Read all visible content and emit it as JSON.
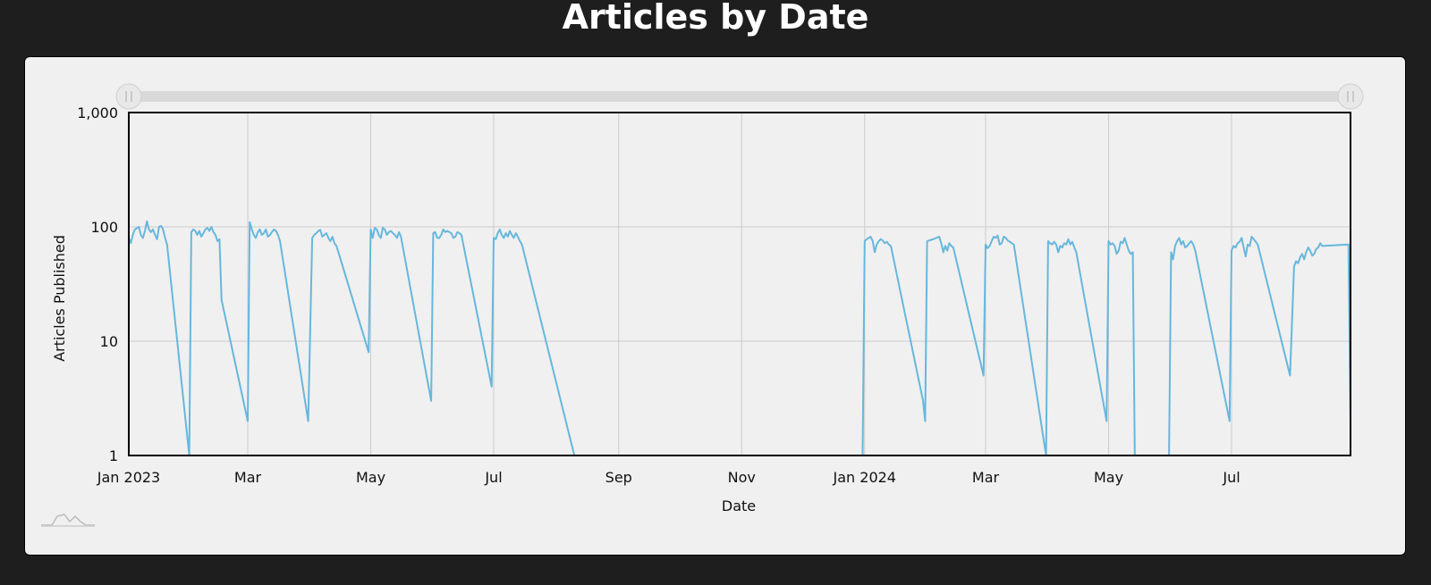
{
  "page_title": "Articles by Date",
  "colors": {
    "background": "#1e1e1e",
    "panel": "#f0f0f0",
    "line": "#67b7dc",
    "grid": "#cccccc",
    "scrollbar_track": "#d9d9d9",
    "scrollbar_grip": "#e6e6e6"
  },
  "icons": {
    "logo": "chart-logo-icon",
    "scroll_start": "scrollbar-start-grip-icon",
    "scroll_end": "scrollbar-end-grip-icon"
  },
  "chart_data": {
    "type": "line",
    "xlabel": "Date",
    "ylabel": "Articles Published",
    "y_scale": "log",
    "ylim": [
      1,
      1000
    ],
    "y_ticks": [
      1,
      10,
      100,
      1000
    ],
    "y_tick_labels": [
      "1",
      "10",
      "100",
      "1,000"
    ],
    "xlim": [
      "2023-01-01",
      "2024-08-29"
    ],
    "x_ticks": [
      "2023-01-01",
      "2023-03-01",
      "2023-05-01",
      "2023-07-01",
      "2023-09-01",
      "2023-11-01",
      "2024-01-01",
      "2024-03-01",
      "2024-05-01",
      "2024-07-01"
    ],
    "x_tick_labels": [
      "Jan 2023",
      "Mar",
      "May",
      "Jul",
      "Sep",
      "Nov",
      "Jan 2024",
      "Mar",
      "May",
      "Jul"
    ],
    "grid": true,
    "legend": "none",
    "has_scrollbar": true,
    "series": [
      {
        "x": [
          "2023-01-01",
          "2023-01-02",
          "2023-01-03",
          "2023-01-04",
          "2023-01-06",
          "2023-01-07",
          "2023-01-08",
          "2023-01-09",
          "2023-01-10",
          "2023-01-11",
          "2023-01-12",
          "2023-01-13",
          "2023-01-14",
          "2023-01-15",
          "2023-01-16",
          "2023-01-17",
          "2023-01-18",
          "2023-01-19",
          "2023-01-20",
          "2023-01-31",
          "2023-02-01",
          "2023-02-02",
          "2023-02-03",
          "2023-02-04",
          "2023-02-05",
          "2023-02-06",
          "2023-02-07",
          "2023-02-08",
          "2023-02-09",
          "2023-02-10",
          "2023-02-11",
          "2023-02-12",
          "2023-02-13",
          "2023-02-14",
          "2023-02-15",
          "2023-02-16",
          "2023-03-01",
          "2023-03-02",
          "2023-03-03",
          "2023-03-04",
          "2023-03-05",
          "2023-03-06",
          "2023-03-07",
          "2023-03-08",
          "2023-03-09",
          "2023-03-10",
          "2023-03-11",
          "2023-03-12",
          "2023-03-13",
          "2023-03-14",
          "2023-03-15",
          "2023-03-16",
          "2023-03-17",
          "2023-03-31",
          "2023-04-02",
          "2023-04-03",
          "2023-04-04",
          "2023-04-05",
          "2023-04-06",
          "2023-04-07",
          "2023-04-08",
          "2023-04-09",
          "2023-04-10",
          "2023-04-11",
          "2023-04-12",
          "2023-04-13",
          "2023-04-14",
          "2023-04-15",
          "2023-04-30",
          "2023-05-01",
          "2023-05-02",
          "2023-05-03",
          "2023-05-04",
          "2023-05-05",
          "2023-05-06",
          "2023-05-07",
          "2023-05-08",
          "2023-05-09",
          "2023-05-10",
          "2023-05-11",
          "2023-05-12",
          "2023-05-13",
          "2023-05-14",
          "2023-05-15",
          "2023-05-16",
          "2023-05-31",
          "2023-06-01",
          "2023-06-02",
          "2023-06-03",
          "2023-06-04",
          "2023-06-05",
          "2023-06-06",
          "2023-06-07",
          "2023-06-08",
          "2023-06-09",
          "2023-06-10",
          "2023-06-11",
          "2023-06-12",
          "2023-06-13",
          "2023-06-14",
          "2023-06-15",
          "2023-06-30",
          "2023-07-01",
          "2023-07-02",
          "2023-07-03",
          "2023-07-04",
          "2023-07-05",
          "2023-07-06",
          "2023-07-07",
          "2023-07-08",
          "2023-07-09",
          "2023-07-10",
          "2023-07-11",
          "2023-07-12",
          "2023-07-13",
          "2023-07-14",
          "2023-07-15",
          "2023-08-10",
          "2023-12-31",
          "2024-01-01",
          "2024-01-02",
          "2024-01-03",
          "2024-01-04",
          "2024-01-05",
          "2024-01-06",
          "2024-01-07",
          "2024-01-08",
          "2024-01-09",
          "2024-01-10",
          "2024-01-11",
          "2024-01-12",
          "2024-01-13",
          "2024-01-14",
          "2024-01-30",
          "2024-01-31",
          "2024-02-01",
          "2024-02-04",
          "2024-02-07",
          "2024-02-08",
          "2024-02-09",
          "2024-02-10",
          "2024-02-11",
          "2024-02-12",
          "2024-02-13",
          "2024-02-14",
          "2024-02-29",
          "2024-03-01",
          "2024-03-02",
          "2024-03-03",
          "2024-03-04",
          "2024-03-05",
          "2024-03-06",
          "2024-03-07",
          "2024-03-08",
          "2024-03-09",
          "2024-03-10",
          "2024-03-11",
          "2024-03-12",
          "2024-03-13",
          "2024-03-14",
          "2024-03-15",
          "2024-03-31",
          "2024-04-01",
          "2024-04-02",
          "2024-04-03",
          "2024-04-04",
          "2024-04-05",
          "2024-04-06",
          "2024-04-07",
          "2024-04-08",
          "2024-04-09",
          "2024-04-10",
          "2024-04-11",
          "2024-04-12",
          "2024-04-13",
          "2024-04-14",
          "2024-04-15",
          "2024-04-30",
          "2024-05-01",
          "2024-05-02",
          "2024-05-03",
          "2024-05-04",
          "2024-05-05",
          "2024-05-06",
          "2024-05-07",
          "2024-05-08",
          "2024-05-09",
          "2024-05-10",
          "2024-05-11",
          "2024-05-12",
          "2024-05-13",
          "2024-05-14",
          "2024-05-31",
          "2024-06-01",
          "2024-06-02",
          "2024-06-03",
          "2024-06-04",
          "2024-06-05",
          "2024-06-06",
          "2024-06-07",
          "2024-06-08",
          "2024-06-09",
          "2024-06-10",
          "2024-06-11",
          "2024-06-12",
          "2024-06-13",
          "2024-06-30",
          "2024-07-01",
          "2024-07-02",
          "2024-07-03",
          "2024-07-04",
          "2024-07-05",
          "2024-07-06",
          "2024-07-07",
          "2024-07-08",
          "2024-07-09",
          "2024-07-10",
          "2024-07-11",
          "2024-07-12",
          "2024-07-13",
          "2024-07-14",
          "2024-07-30",
          "2024-08-01",
          "2024-08-02",
          "2024-08-03",
          "2024-08-04",
          "2024-08-05",
          "2024-08-06",
          "2024-08-07",
          "2024-08-08",
          "2024-08-09",
          "2024-08-10",
          "2024-08-11",
          "2024-08-12",
          "2024-08-13",
          "2024-08-14",
          "2024-08-15",
          "2024-08-28",
          "2024-08-29"
        ],
        "y": [
          80,
          72,
          85,
          95,
          100,
          85,
          80,
          92,
          112,
          95,
          90,
          95,
          85,
          78,
          100,
          102,
          95,
          80,
          70,
          1,
          90,
          95,
          92,
          85,
          92,
          82,
          88,
          95,
          98,
          92,
          100,
          90,
          85,
          75,
          78,
          23,
          2,
          110,
          95,
          85,
          80,
          90,
          95,
          85,
          88,
          95,
          82,
          85,
          90,
          95,
          92,
          85,
          75,
          2,
          80,
          85,
          88,
          92,
          94,
          82,
          85,
          88,
          80,
          75,
          82,
          72,
          68,
          60,
          8,
          95,
          80,
          98,
          95,
          85,
          80,
          98,
          95,
          85,
          90,
          92,
          88,
          85,
          80,
          90,
          82,
          3,
          88,
          90,
          80,
          80,
          85,
          95,
          90,
          92,
          90,
          88,
          80,
          82,
          90,
          88,
          85,
          4,
          80,
          78,
          88,
          95,
          85,
          80,
          88,
          82,
          92,
          85,
          80,
          88,
          82,
          75,
          70,
          1,
          1,
          75,
          78,
          80,
          82,
          75,
          60,
          70,
          75,
          78,
          76,
          72,
          74,
          70,
          68,
          3,
          2,
          75,
          78,
          82,
          72,
          60,
          68,
          62,
          72,
          68,
          66,
          5,
          70,
          65,
          68,
          75,
          82,
          80,
          84,
          70,
          72,
          82,
          80,
          76,
          74,
          72,
          70,
          1,
          75,
          72,
          70,
          74,
          70,
          60,
          68,
          66,
          72,
          70,
          78,
          70,
          74,
          66,
          60,
          2,
          75,
          70,
          72,
          68,
          58,
          62,
          74,
          72,
          80,
          70,
          62,
          58,
          60,
          1,
          1,
          60,
          52,
          68,
          75,
          80,
          70,
          75,
          66,
          68,
          72,
          75,
          70,
          62,
          2,
          62,
          68,
          66,
          72,
          74,
          80,
          66,
          55,
          70,
          68,
          82,
          78,
          74,
          70,
          5,
          45,
          50,
          48,
          54,
          58,
          52,
          60,
          66,
          62,
          56,
          58,
          64,
          66,
          72,
          68,
          70,
          2
        ]
      }
    ]
  }
}
